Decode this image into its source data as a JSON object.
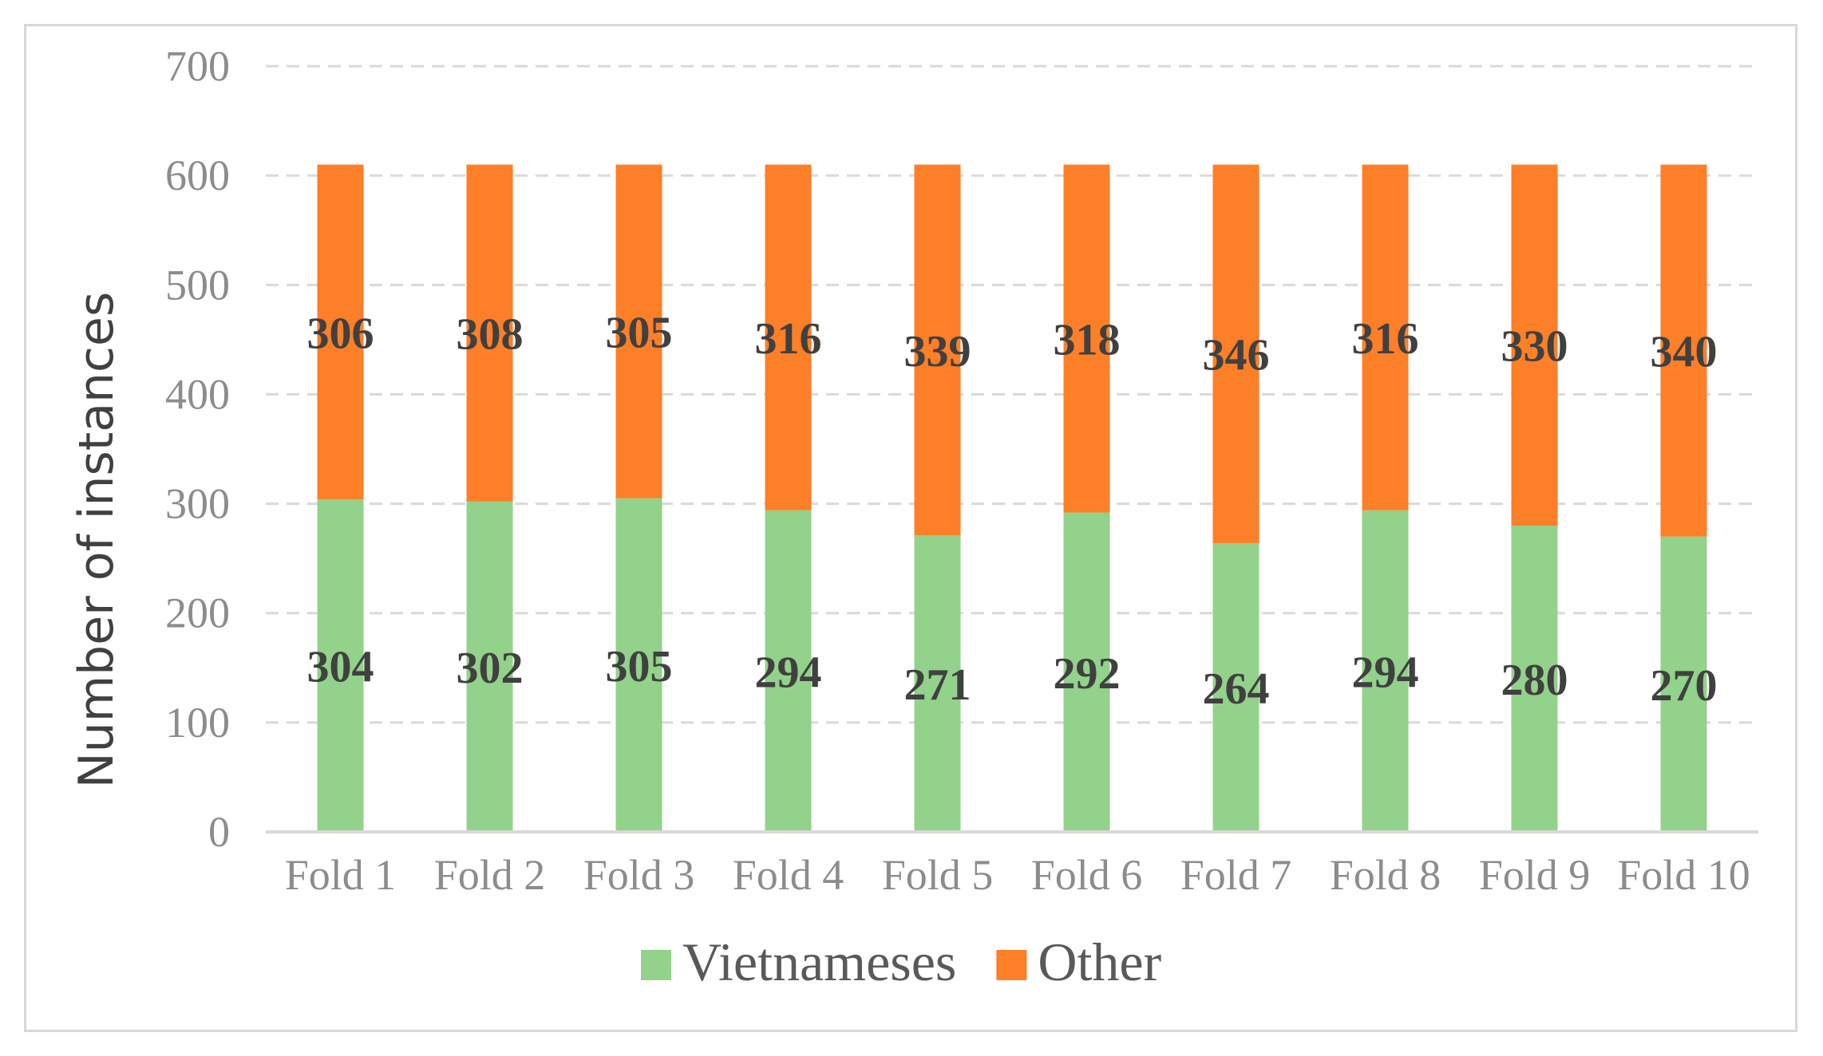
{
  "chart_data": {
    "type": "bar",
    "stacked": true,
    "title": "",
    "xlabel": "",
    "ylabel": "Number of instances",
    "ylim": [
      0,
      700
    ],
    "yticks": [
      0,
      100,
      200,
      300,
      400,
      500,
      600,
      700
    ],
    "grid": true,
    "legend_position": "bottom",
    "categories": [
      "Fold 1",
      "Fold 2",
      "Fold 3",
      "Fold 4",
      "Fold 5",
      "Fold 6",
      "Fold 7",
      "Fold 8",
      "Fold 9",
      "Fold 10"
    ],
    "series": [
      {
        "name": "Vietnameses",
        "color": "#92d28a",
        "values": [
          304,
          302,
          305,
          294,
          271,
          292,
          264,
          294,
          280,
          270
        ],
        "labels": [
          "304",
          "302",
          "305",
          "294",
          "271",
          "292",
          "264",
          "294",
          "280",
          "270"
        ]
      },
      {
        "name": "Other",
        "color": "#fd7f27",
        "values": [
          306,
          308,
          305,
          316,
          339,
          318,
          346,
          316,
          330,
          340
        ],
        "labels": [
          "306",
          "308",
          "305",
          "316",
          "339",
          "318",
          "346",
          "316",
          "330",
          "340"
        ]
      }
    ]
  }
}
